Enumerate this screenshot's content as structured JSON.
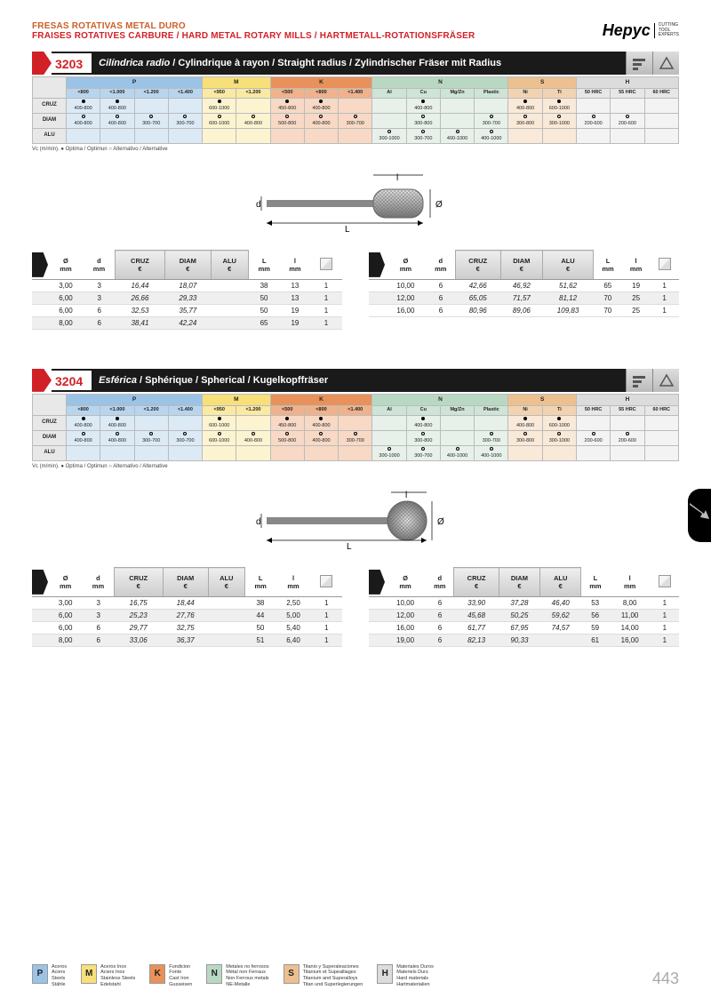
{
  "header": {
    "line1": "FRESAS ROTATIVAS METAL DURO",
    "line2": "FRAISES ROTATIVES CARBURE / HARD METAL ROTARY MILLS / HARTMETALL-ROTATIONSFRÄSER",
    "brand_name": "Hepyc",
    "brand_tag": "CUTTING\nTOOL\nEXPERTS"
  },
  "matrix": {
    "groups": [
      {
        "code": "P",
        "color": "#9bc3e6",
        "subs": [
          "<800",
          "<1.000",
          "<1.200",
          "<1.400"
        ]
      },
      {
        "code": "M",
        "color": "#f7e07a",
        "subs": [
          "<950",
          "<1.200"
        ]
      },
      {
        "code": "K",
        "color": "#e8915a",
        "subs": [
          "<500",
          "<800",
          "<1.400"
        ]
      },
      {
        "code": "N",
        "color": "#b9d8c4",
        "subs": [
          "Al",
          "Cu",
          "Mg/Zn",
          "Plastic"
        ]
      },
      {
        "code": "S",
        "color": "#edc08f",
        "subs": [
          "Ni",
          "Ti"
        ]
      },
      {
        "code": "H",
        "color": "#dcdcdc",
        "subs": [
          "50 HRC",
          "55 HRC",
          "60 HRC"
        ]
      }
    ],
    "row_labels": [
      "CRUZ",
      "DIAM",
      "ALU"
    ],
    "rows": [
      [
        {
          "m": "f",
          "v": "400-800"
        },
        {
          "m": "f",
          "v": "400-800"
        },
        {
          "m": "",
          "v": ""
        },
        {
          "m": "",
          "v": ""
        },
        {
          "m": "f",
          "v": "600-1000"
        },
        {
          "m": "",
          "v": ""
        },
        {
          "m": "f",
          "v": "450-800"
        },
        {
          "m": "f",
          "v": "400-800"
        },
        {
          "m": "",
          "v": ""
        },
        {
          "m": "",
          "v": ""
        },
        {
          "m": "f",
          "v": "400-800"
        },
        {
          "m": "",
          "v": ""
        },
        {
          "m": "",
          "v": ""
        },
        {
          "m": "f",
          "v": "400-800"
        },
        {
          "m": "f",
          "v": "600-1000"
        },
        {
          "m": "",
          "v": ""
        },
        {
          "m": "",
          "v": ""
        },
        {
          "m": "",
          "v": ""
        }
      ],
      [
        {
          "m": "o",
          "v": "400-800"
        },
        {
          "m": "o",
          "v": "400-800"
        },
        {
          "m": "o",
          "v": "300-700"
        },
        {
          "m": "o",
          "v": "300-700"
        },
        {
          "m": "o",
          "v": "600-1000"
        },
        {
          "m": "o",
          "v": "400-800"
        },
        {
          "m": "o",
          "v": "500-800"
        },
        {
          "m": "o",
          "v": "400-800"
        },
        {
          "m": "o",
          "v": "300-700"
        },
        {
          "m": "",
          "v": ""
        },
        {
          "m": "o",
          "v": "300-800"
        },
        {
          "m": "",
          "v": ""
        },
        {
          "m": "o",
          "v": "300-700"
        },
        {
          "m": "o",
          "v": "300-800"
        },
        {
          "m": "o",
          "v": "300-1000"
        },
        {
          "m": "o",
          "v": "200-600"
        },
        {
          "m": "o",
          "v": "200-600"
        },
        {
          "m": "",
          "v": ""
        }
      ],
      [
        {
          "m": "",
          "v": ""
        },
        {
          "m": "",
          "v": ""
        },
        {
          "m": "",
          "v": ""
        },
        {
          "m": "",
          "v": ""
        },
        {
          "m": "",
          "v": ""
        },
        {
          "m": "",
          "v": ""
        },
        {
          "m": "",
          "v": ""
        },
        {
          "m": "",
          "v": ""
        },
        {
          "m": "",
          "v": ""
        },
        {
          "m": "o",
          "v": "300-1000"
        },
        {
          "m": "o",
          "v": "300-700"
        },
        {
          "m": "o",
          "v": "400-1000"
        },
        {
          "m": "o",
          "v": "400-1000"
        },
        {
          "m": "",
          "v": ""
        },
        {
          "m": "",
          "v": ""
        },
        {
          "m": "",
          "v": ""
        },
        {
          "m": "",
          "v": ""
        },
        {
          "m": "",
          "v": ""
        }
      ]
    ],
    "note": "Vc (m/min). ● Optima / Optimun  ○ Alternativo / Alternative"
  },
  "products": [
    {
      "num": "3203",
      "title_bold": "Cilíndrica radio",
      "title_rest": " / Cylindrique à rayon / Straight radius / Zylindrischer Fräser mit Radius",
      "diagram": "cylradius",
      "spec_headers": [
        "Ø\nmm",
        "d\nmm",
        "CRUZ\n€",
        "DIAM\n€",
        "ALU\n€",
        "L\nmm",
        "l\nmm",
        "□"
      ],
      "spec_left": [
        [
          "3,00",
          "3",
          "16,44",
          "18,07",
          "",
          "38",
          "13",
          "1"
        ],
        [
          "6,00",
          "3",
          "26,66",
          "29,33",
          "",
          "50",
          "13",
          "1"
        ],
        [
          "6,00",
          "6",
          "32,53",
          "35,77",
          "",
          "50",
          "19",
          "1"
        ],
        [
          "8,00",
          "6",
          "38,41",
          "42,24",
          "",
          "65",
          "19",
          "1"
        ]
      ],
      "spec_right": [
        [
          "10,00",
          "6",
          "42,66",
          "46,92",
          "51,62",
          "65",
          "19",
          "1"
        ],
        [
          "12,00",
          "6",
          "65,05",
          "71,57",
          "81,12",
          "70",
          "25",
          "1"
        ],
        [
          "16,00",
          "6",
          "80,96",
          "89,06",
          "109,83",
          "70",
          "25",
          "1"
        ]
      ]
    },
    {
      "num": "3204",
      "title_bold": "Esférica",
      "title_rest": " / Sphérique / Spherical / Kugelkopffräser",
      "diagram": "sphere",
      "spec_headers": [
        "Ø\nmm",
        "d\nmm",
        "CRUZ\n€",
        "DIAM\n€",
        "ALU\n€",
        "L\nmm",
        "l\nmm",
        "□"
      ],
      "spec_left": [
        [
          "3,00",
          "3",
          "16,75",
          "18,44",
          "",
          "38",
          "2,50",
          "1"
        ],
        [
          "6,00",
          "3",
          "25,23",
          "27,76",
          "",
          "44",
          "5,00",
          "1"
        ],
        [
          "6,00",
          "6",
          "29,77",
          "32,75",
          "",
          "50",
          "5,40",
          "1"
        ],
        [
          "8,00",
          "6",
          "33,06",
          "36,37",
          "",
          "51",
          "6,40",
          "1"
        ]
      ],
      "spec_right": [
        [
          "10,00",
          "6",
          "33,90",
          "37,28",
          "46,40",
          "53",
          "8,00",
          "1"
        ],
        [
          "12,00",
          "6",
          "45,68",
          "50,25",
          "59,62",
          "56",
          "11,00",
          "1"
        ],
        [
          "16,00",
          "6",
          "61,77",
          "67,95",
          "74,57",
          "59",
          "14,00",
          "1"
        ],
        [
          "19,00",
          "6",
          "82,13",
          "90,33",
          "",
          "61",
          "16,00",
          "1"
        ]
      ]
    }
  ],
  "legend": [
    {
      "code": "P",
      "color": "#9bc3e6",
      "text": "Aceros\nAciers\nSteels\nStähle"
    },
    {
      "code": "M",
      "color": "#f7e07a",
      "text": "Aceros Inox\nAciers Inox\nStainless Steels\nEdelstahl"
    },
    {
      "code": "K",
      "color": "#e8915a",
      "text": "Fundicion\nFonte\nCast Iron\nGusseisen"
    },
    {
      "code": "N",
      "color": "#b9d8c4",
      "text": "Metales no ferrosos\nMétal non Ferraux\nNon Ferrous metals\nNE-Metalle"
    },
    {
      "code": "S",
      "color": "#edc08f",
      "text": "Titanio y Superaleaciones\nTitanium et Supealliages\nTitanium and Superalloys\nTitan und Superlegierungen"
    },
    {
      "code": "H",
      "color": "#dcdcdc",
      "text": "Materiales Duros\nMateriels Durs\nHard materials\nHartmaterialien"
    }
  ],
  "page_number": "443"
}
